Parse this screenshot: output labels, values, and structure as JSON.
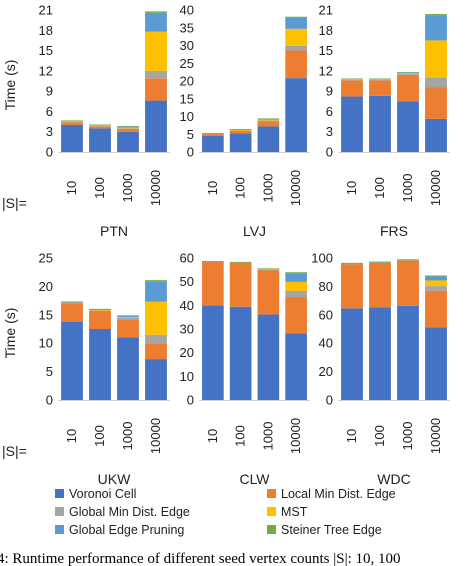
{
  "series_colors": {
    "voronoi": "#4472C4",
    "local_min": "#ED7D31",
    "global_min": "#A5A5A5",
    "mst": "#FFC000",
    "global_pruning": "#5B9BD5",
    "steiner": "#70AD47"
  },
  "legend": [
    {
      "key": "voronoi",
      "label": "Voronoi Cell"
    },
    {
      "key": "local_min",
      "label": "Local Min Dist. Edge"
    },
    {
      "key": "global_min",
      "label": "Global Min Dist. Edge"
    },
    {
      "key": "mst",
      "label": "MST"
    },
    {
      "key": "global_pruning",
      "label": "Global Edge Pruning"
    },
    {
      "key": "steiner",
      "label": "Steiner Tree Edge"
    }
  ],
  "y_axis_title": "Time (s)",
  "s_label": "|S|=",
  "caption": "4: Runtime performance of different seed vertex counts |S|: 10, 100",
  "chart_data": [
    {
      "type": "bar",
      "stacked": true,
      "name": "PTN",
      "categories": [
        "10",
        "100",
        "1000",
        "10000"
      ],
      "ylim": [
        0,
        21
      ],
      "yticks": [
        0,
        3,
        6,
        9,
        12,
        15,
        18,
        21
      ],
      "series": [
        {
          "key": "voronoi",
          "values": [
            4.0,
            3.5,
            3.0,
            7.6
          ]
        },
        {
          "key": "local_min",
          "values": [
            0.4,
            0.3,
            0.4,
            3.3
          ]
        },
        {
          "key": "global_min",
          "values": [
            0.1,
            0.1,
            0.1,
            1.1
          ]
        },
        {
          "key": "mst",
          "values": [
            0.05,
            0.05,
            0.1,
            5.8
          ]
        },
        {
          "key": "global_pruning",
          "values": [
            0.1,
            0.1,
            0.2,
            2.8
          ]
        },
        {
          "key": "steiner",
          "values": [
            0.02,
            0.02,
            0.02,
            0.2
          ]
        }
      ]
    },
    {
      "type": "bar",
      "stacked": true,
      "name": "LVJ",
      "categories": [
        "10",
        "100",
        "1000",
        "10000"
      ],
      "ylim": [
        0,
        40
      ],
      "yticks": [
        0,
        5,
        10,
        15,
        20,
        25,
        30,
        35,
        40
      ],
      "series": [
        {
          "key": "voronoi",
          "values": [
            4.5,
            5.2,
            7.2,
            20.8
          ]
        },
        {
          "key": "local_min",
          "values": [
            0.6,
            0.8,
            1.5,
            7.8
          ]
        },
        {
          "key": "global_min",
          "values": [
            0.1,
            0.1,
            0.2,
            1.3
          ]
        },
        {
          "key": "mst",
          "values": [
            0.05,
            0.1,
            0.2,
            4.8
          ]
        },
        {
          "key": "global_pruning",
          "values": [
            0.1,
            0.2,
            0.3,
            3.2
          ]
        },
        {
          "key": "steiner",
          "values": [
            0.02,
            0.02,
            0.05,
            0.2
          ]
        }
      ]
    },
    {
      "type": "bar",
      "stacked": true,
      "name": "FRS",
      "categories": [
        "10",
        "100",
        "1000",
        "10000"
      ],
      "ylim": [
        0,
        21
      ],
      "yticks": [
        0,
        3,
        6,
        9,
        12,
        15,
        18,
        21
      ],
      "series": [
        {
          "key": "voronoi",
          "values": [
            8.2,
            8.3,
            7.5,
            4.9
          ]
        },
        {
          "key": "local_min",
          "values": [
            2.4,
            2.3,
            3.9,
            4.7
          ]
        },
        {
          "key": "global_min",
          "values": [
            0.1,
            0.1,
            0.2,
            1.4
          ]
        },
        {
          "key": "mst",
          "values": [
            0.05,
            0.05,
            0.1,
            5.5
          ]
        },
        {
          "key": "global_pruning",
          "values": [
            0.1,
            0.1,
            0.1,
            3.7
          ]
        },
        {
          "key": "steiner",
          "values": [
            0.02,
            0.02,
            0.02,
            0.2
          ]
        }
      ]
    },
    {
      "type": "bar",
      "stacked": true,
      "name": "UKW",
      "categories": [
        "10",
        "100",
        "1000",
        "10000"
      ],
      "ylim": [
        0,
        25
      ],
      "yticks": [
        0,
        5,
        10,
        15,
        20,
        25
      ],
      "series": [
        {
          "key": "voronoi",
          "values": [
            13.8,
            12.5,
            11.0,
            7.2
          ]
        },
        {
          "key": "local_min",
          "values": [
            3.2,
            3.2,
            3.2,
            2.8
          ]
        },
        {
          "key": "global_min",
          "values": [
            0.1,
            0.1,
            0.3,
            1.5
          ]
        },
        {
          "key": "mst",
          "values": [
            0.05,
            0.05,
            0.1,
            5.8
          ]
        },
        {
          "key": "global_pruning",
          "values": [
            0.1,
            0.1,
            0.2,
            3.6
          ]
        },
        {
          "key": "steiner",
          "values": [
            0.1,
            0.1,
            0.1,
            0.2
          ]
        }
      ]
    },
    {
      "type": "bar",
      "stacked": true,
      "name": "CLW",
      "categories": [
        "10",
        "100",
        "1000",
        "10000"
      ],
      "ylim": [
        0,
        60
      ],
      "yticks": [
        0,
        10,
        20,
        30,
        40,
        50,
        60
      ],
      "series": [
        {
          "key": "voronoi",
          "values": [
            39.9,
            39.4,
            36.1,
            28.2
          ]
        },
        {
          "key": "local_min",
          "values": [
            18.5,
            18.6,
            18.8,
            15.3
          ]
        },
        {
          "key": "global_min",
          "values": [
            0.1,
            0.1,
            0.2,
            2.6
          ]
        },
        {
          "key": "mst",
          "values": [
            0.05,
            0.05,
            0.1,
            3.8
          ]
        },
        {
          "key": "global_pruning",
          "values": [
            0.1,
            0.1,
            0.3,
            3.4
          ]
        },
        {
          "key": "steiner",
          "values": [
            0.1,
            0.1,
            0.1,
            0.7
          ]
        }
      ]
    },
    {
      "type": "bar",
      "stacked": true,
      "name": "WDC",
      "categories": [
        "10",
        "100",
        "1000",
        "10000"
      ],
      "ylim": [
        0,
        100
      ],
      "yticks": [
        0,
        20,
        40,
        60,
        80,
        100
      ],
      "series": [
        {
          "key": "voronoi",
          "values": [
            64.5,
            65.2,
            66.3,
            51.2
          ]
        },
        {
          "key": "local_min",
          "values": [
            31.3,
            31.5,
            32.0,
            25.8
          ]
        },
        {
          "key": "global_min",
          "values": [
            0.2,
            0.2,
            0.2,
            3.2
          ]
        },
        {
          "key": "mst",
          "values": [
            0.1,
            0.1,
            0.1,
            4.0
          ]
        },
        {
          "key": "global_pruning",
          "values": [
            0.2,
            0.2,
            0.2,
            2.8
          ]
        },
        {
          "key": "steiner",
          "values": [
            0.3,
            0.3,
            0.3,
            0.7
          ]
        }
      ]
    }
  ]
}
